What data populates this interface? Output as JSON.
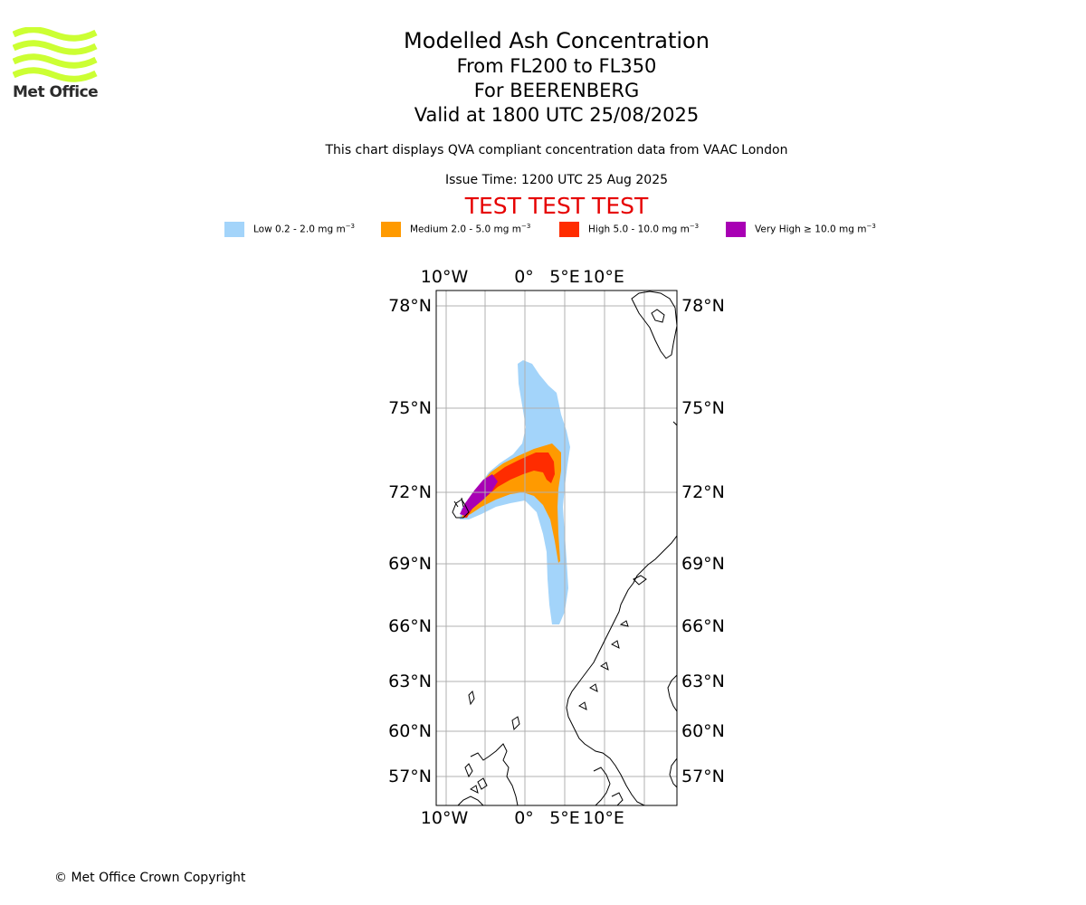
{
  "logo": {
    "text": "Met Office",
    "color": "#ccff33"
  },
  "titles": {
    "main": "Modelled Ash Concentration",
    "levels": "From FL200 to FL350",
    "volcano": "For BEERENBERG",
    "valid": "Valid at 1800 UTC 25/08/2025"
  },
  "description": "This chart displays QVA compliant concentration data from VAAC London",
  "issue_time": "Issue Time: 1200 UTC 25 Aug 2025",
  "test_banner": "TEST TEST TEST",
  "legend": [
    {
      "label": "Low 0.2 - 2.0 mg m",
      "color": "#a3d4fa"
    },
    {
      "label": "Medium 2.0 - 5.0 mg m",
      "color": "#ff9a00"
    },
    {
      "label": "High 5.0 - 10.0 mg m",
      "color": "#ff2c00"
    },
    {
      "label": "Very High ≥ 10.0 mg m",
      "color": "#a800b4"
    }
  ],
  "legend_exponent": "−3",
  "map": {
    "lon_labels": [
      "10°W",
      "0°",
      "5°E",
      "10°E"
    ],
    "lat_labels": [
      "78°N",
      "75°N",
      "72°N",
      "69°N",
      "66°N",
      "63°N",
      "60°N",
      "57°N"
    ]
  },
  "copyright": "© Met Office Crown Copyright"
}
